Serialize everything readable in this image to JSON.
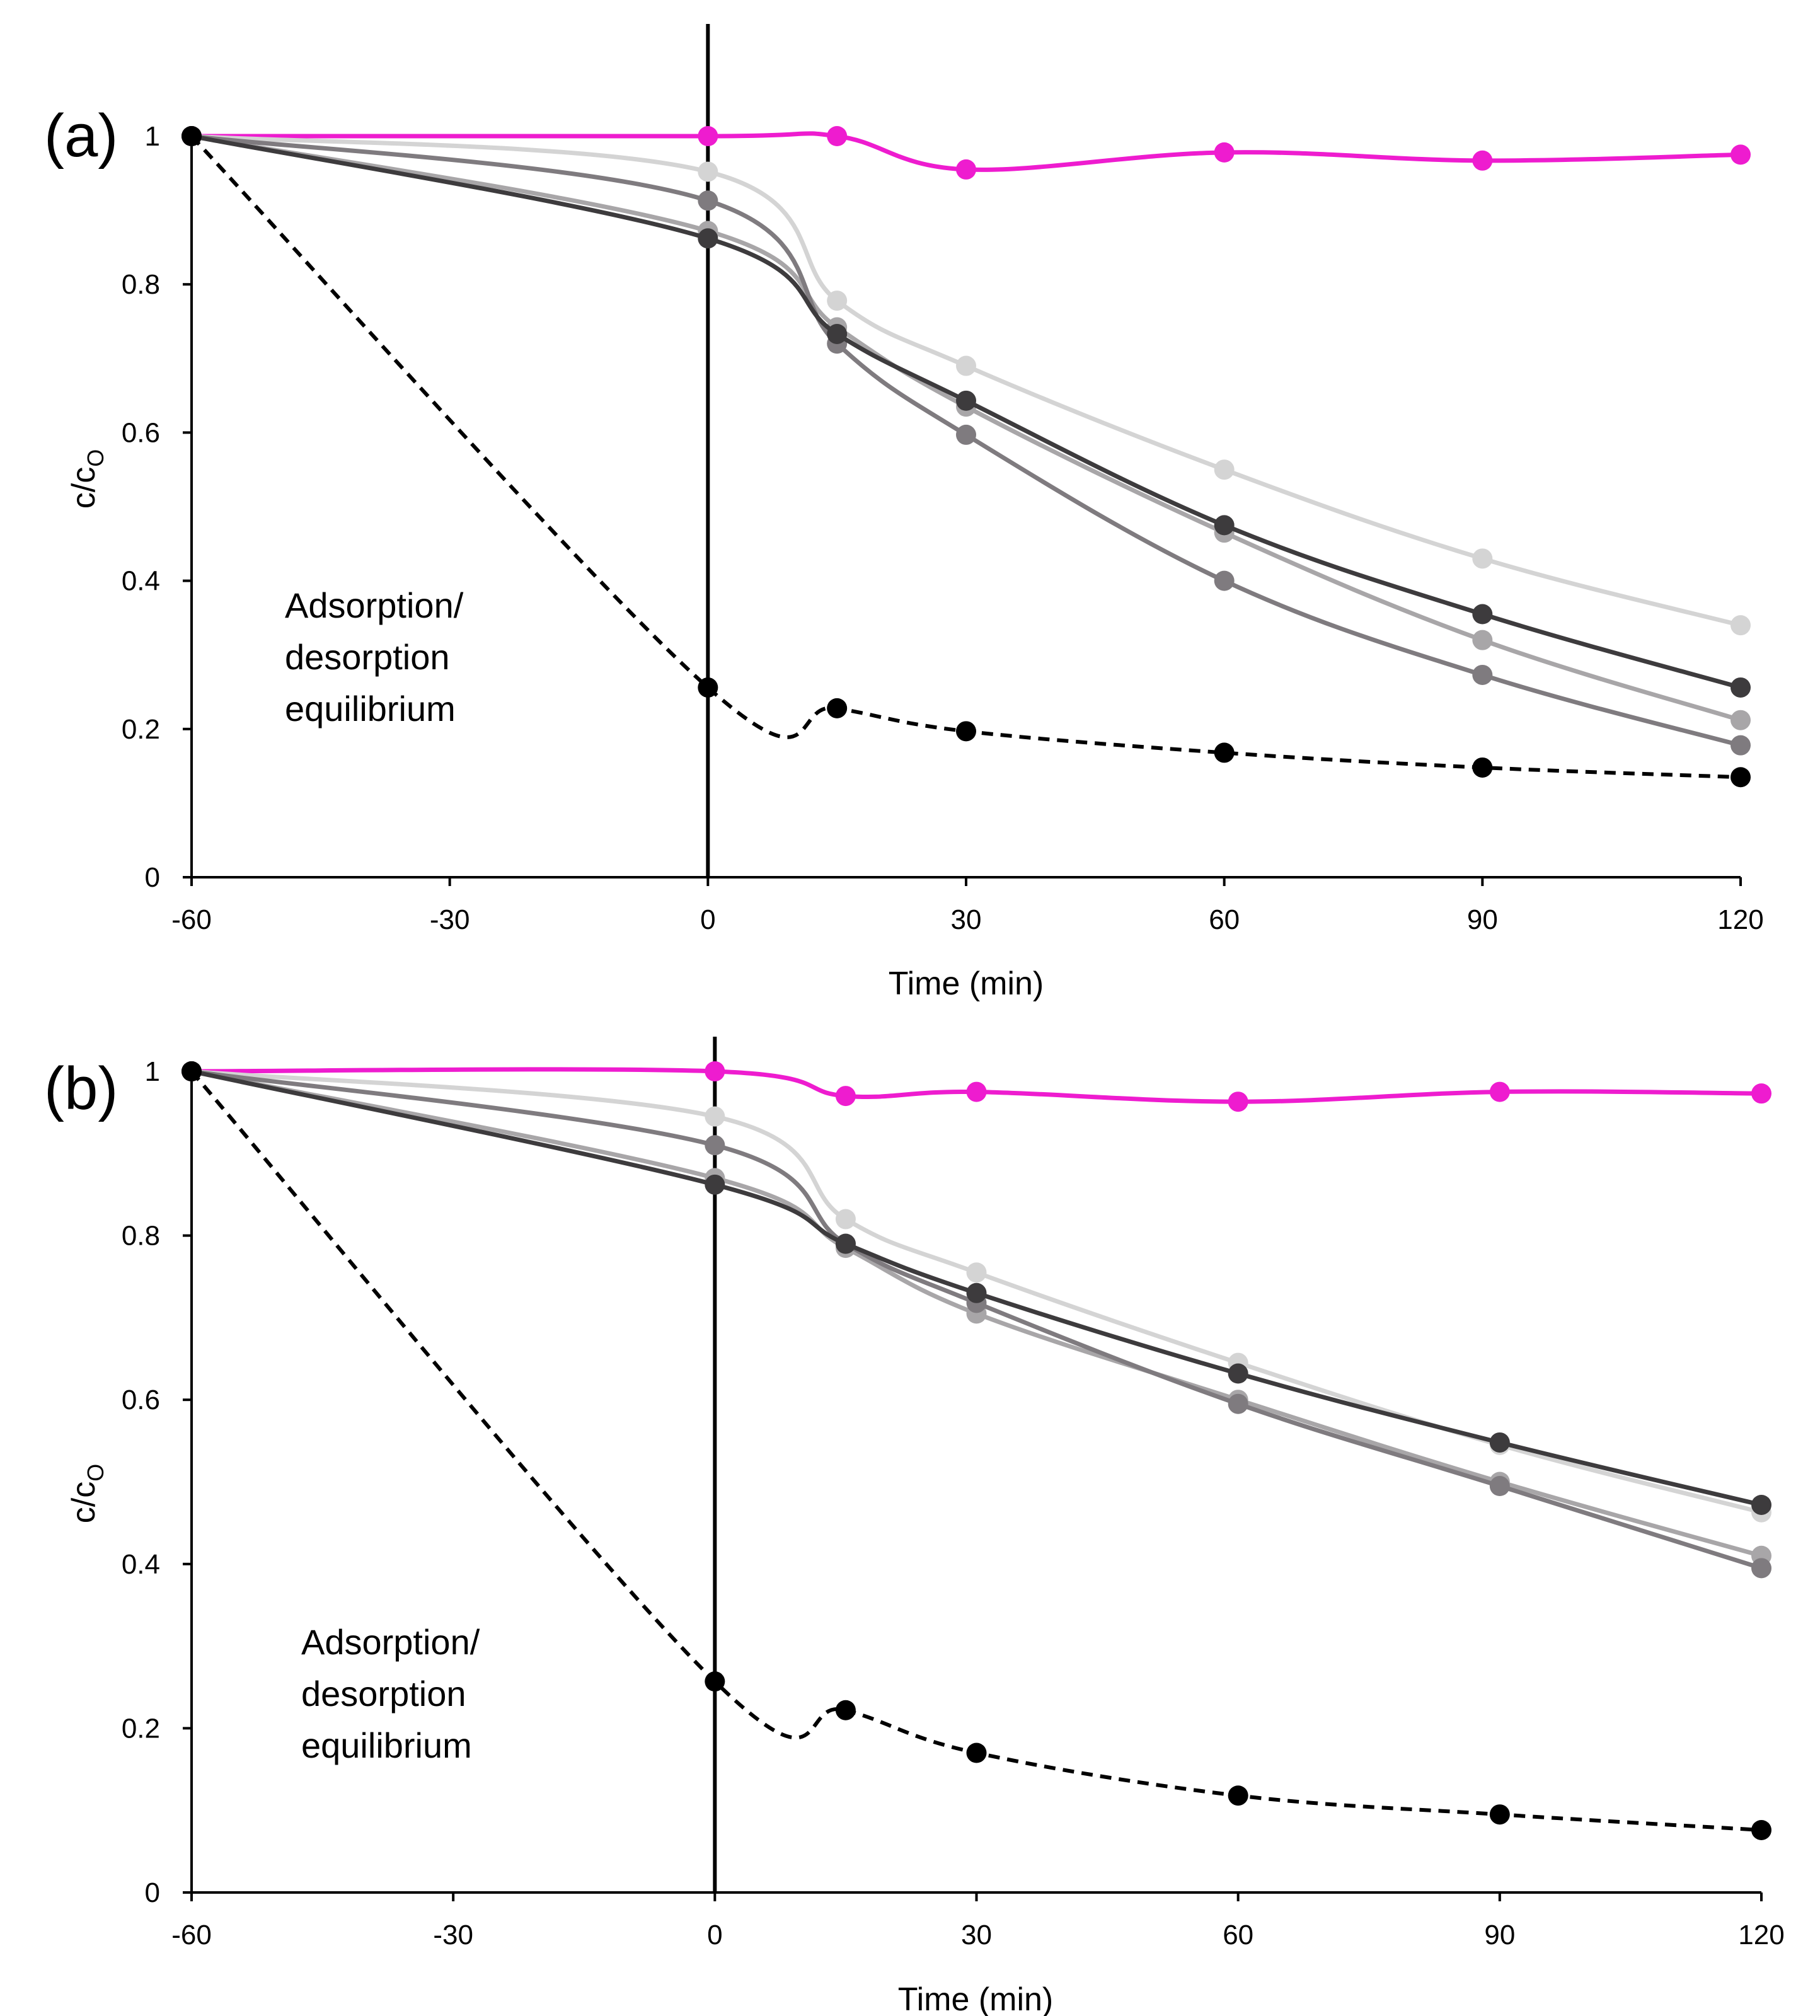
{
  "chart_data": [
    {
      "type": "line",
      "panel_label": "(a)",
      "xlabel": "Time (min)",
      "ylabel": {
        "main": "c/c",
        "sub": "O"
      },
      "xlim": [
        -60,
        120
      ],
      "ylim": [
        0,
        1
      ],
      "x_ticks": [
        "-60",
        "-30",
        "0",
        "30",
        "60",
        "90",
        "120"
      ],
      "y_ticks": [
        "0",
        "0.2",
        "0.4",
        "0.6",
        "0.8",
        "1"
      ],
      "annotation": [
        "Adsorption/",
        "desorption",
        "equilibrium"
      ],
      "divider_x": 0,
      "series": [
        {
          "name": "magenta",
          "color": "#ee1ccf",
          "dashed": false,
          "x": [
            -60,
            0,
            15,
            30,
            60,
            90,
            120
          ],
          "y": [
            1.0,
            1.0,
            1.0,
            0.955,
            0.978,
            0.967,
            0.975
          ]
        },
        {
          "name": "light-gray",
          "color": "#d4d4d4",
          "dashed": false,
          "x": [
            -60,
            0,
            15,
            30,
            60,
            90,
            120
          ],
          "y": [
            1.0,
            0.952,
            0.778,
            0.69,
            0.55,
            0.43,
            0.34
          ]
        },
        {
          "name": "mid-gray",
          "color": "#a8a6a8",
          "dashed": false,
          "x": [
            -60,
            0,
            15,
            30,
            60,
            90,
            120
          ],
          "y": [
            1.0,
            0.872,
            0.742,
            0.635,
            0.465,
            0.32,
            0.212
          ]
        },
        {
          "name": "gray",
          "color": "#7f7b7f",
          "dashed": false,
          "x": [
            -60,
            0,
            15,
            30,
            60,
            90,
            120
          ],
          "y": [
            1.0,
            0.913,
            0.72,
            0.597,
            0.4,
            0.273,
            0.178
          ]
        },
        {
          "name": "dark-gray",
          "color": "#3d3b3d",
          "dashed": false,
          "x": [
            -60,
            0,
            15,
            30,
            60,
            90,
            120
          ],
          "y": [
            1.0,
            0.862,
            0.733,
            0.643,
            0.475,
            0.355,
            0.256
          ]
        },
        {
          "name": "black-dashed",
          "color": "#000000",
          "dashed": true,
          "x": [
            -60,
            0,
            15,
            30,
            60,
            90,
            120
          ],
          "y": [
            1.0,
            0.256,
            0.228,
            0.197,
            0.168,
            0.148,
            0.135
          ]
        }
      ]
    },
    {
      "type": "line",
      "panel_label": "(b)",
      "xlabel": "Time (min)",
      "ylabel": {
        "main": "c/c",
        "sub": "O"
      },
      "xlim": [
        -60,
        120
      ],
      "ylim": [
        0,
        1
      ],
      "x_ticks": [
        "-60",
        "-30",
        "0",
        "30",
        "60",
        "90",
        "120"
      ],
      "y_ticks": [
        "0",
        "0.2",
        "0.4",
        "0.6",
        "0.8",
        "1"
      ],
      "annotation": [
        "Adsorption/",
        "desorption",
        "equilibrium"
      ],
      "divider_x": 0,
      "series": [
        {
          "name": "magenta",
          "color": "#ee1ccf",
          "dashed": false,
          "x": [
            -60,
            0,
            15,
            30,
            60,
            90,
            120
          ],
          "y": [
            1.0,
            1.0,
            0.97,
            0.975,
            0.963,
            0.975,
            0.973
          ]
        },
        {
          "name": "light-gray",
          "color": "#d4d4d4",
          "dashed": false,
          "x": [
            -60,
            0,
            15,
            30,
            60,
            90,
            120
          ],
          "y": [
            1.0,
            0.945,
            0.82,
            0.755,
            0.645,
            0.545,
            0.463
          ]
        },
        {
          "name": "mid-gray",
          "color": "#a8a6a8",
          "dashed": false,
          "x": [
            -60,
            0,
            15,
            30,
            60,
            90,
            120
          ],
          "y": [
            1.0,
            0.87,
            0.785,
            0.705,
            0.6,
            0.5,
            0.41
          ]
        },
        {
          "name": "gray",
          "color": "#7f7b7f",
          "dashed": false,
          "x": [
            -60,
            0,
            15,
            30,
            60,
            90,
            120
          ],
          "y": [
            1.0,
            0.91,
            0.79,
            0.718,
            0.595,
            0.495,
            0.395
          ]
        },
        {
          "name": "dark-gray",
          "color": "#3d3b3d",
          "dashed": false,
          "x": [
            -60,
            0,
            15,
            30,
            60,
            90,
            120
          ],
          "y": [
            1.0,
            0.862,
            0.79,
            0.73,
            0.632,
            0.548,
            0.472
          ]
        },
        {
          "name": "black-dashed",
          "color": "#000000",
          "dashed": true,
          "x": [
            -60,
            0,
            15,
            30,
            60,
            90,
            120
          ],
          "y": [
            1.0,
            0.257,
            0.222,
            0.17,
            0.118,
            0.095,
            0.076
          ]
        }
      ]
    }
  ]
}
